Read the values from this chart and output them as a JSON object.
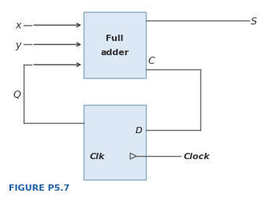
{
  "fig_width": 3.36,
  "fig_height": 2.51,
  "dpi": 100,
  "bg_color": "#ffffff",
  "box_fill": "#dce9f5",
  "box_edge": "#8aabbf",
  "line_color": "#666666",
  "arrow_color": "#444444",
  "text_color": "#333333",
  "figure_label": "FIGURE P5.7",
  "figure_label_color": "#1a5fa8",
  "labels": {
    "x": "x",
    "y": "y",
    "S": "S",
    "C": "C",
    "Q": "Q",
    "D": "D",
    "Clk": "Clk",
    "Clock": "Clock",
    "full_adder_line1": "Full",
    "full_adder_line2": "adder"
  }
}
